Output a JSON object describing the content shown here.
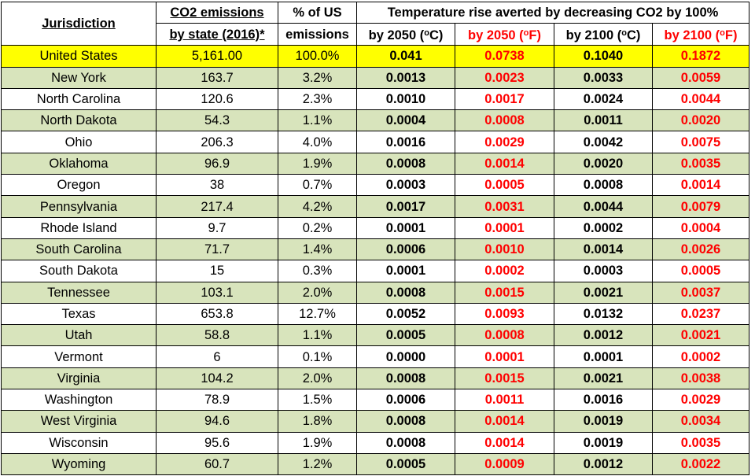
{
  "header": {
    "jurisdiction": "Jurisdiction",
    "co2_line1": "CO2 emissions",
    "co2_line2": "by state (2016)*",
    "pct_line1": "% of US",
    "pct_line2": "emissions",
    "temp_title": "Temperature rise averted by decreasing CO2 by 100%",
    "sub": [
      {
        "pre": "by 2050 (",
        "deg": "o",
        "unit": "C)"
      },
      {
        "pre": "by 2050 (",
        "deg": "o",
        "unit": "F)"
      },
      {
        "pre": "by 2100 (",
        "deg": "o",
        "unit": "C)"
      },
      {
        "pre": "by 2100 (",
        "deg": "o",
        "unit": "F)"
      }
    ]
  },
  "colors": {
    "highlight": "#ffff00",
    "band": "#d8e4bc",
    "fahrenheit": "#ff0000"
  },
  "rows": [
    {
      "name": "United States",
      "co2": "5,161.00",
      "pct": "100.0%",
      "c2050": "0.041",
      "f2050": "0.0738",
      "c2100": "0.1040",
      "f2100": "0.1872"
    },
    {
      "name": "New York",
      "co2": "163.7",
      "pct": "3.2%",
      "c2050": "0.0013",
      "f2050": "0.0023",
      "c2100": "0.0033",
      "f2100": "0.0059"
    },
    {
      "name": "North Carolina",
      "co2": "120.6",
      "pct": "2.3%",
      "c2050": "0.0010",
      "f2050": "0.0017",
      "c2100": "0.0024",
      "f2100": "0.0044"
    },
    {
      "name": "North Dakota",
      "co2": "54.3",
      "pct": "1.1%",
      "c2050": "0.0004",
      "f2050": "0.0008",
      "c2100": "0.0011",
      "f2100": "0.0020"
    },
    {
      "name": "Ohio",
      "co2": "206.3",
      "pct": "4.0%",
      "c2050": "0.0016",
      "f2050": "0.0029",
      "c2100": "0.0042",
      "f2100": "0.0075"
    },
    {
      "name": "Oklahoma",
      "co2": "96.9",
      "pct": "1.9%",
      "c2050": "0.0008",
      "f2050": "0.0014",
      "c2100": "0.0020",
      "f2100": "0.0035"
    },
    {
      "name": "Oregon",
      "co2": "38",
      "pct": "0.7%",
      "c2050": "0.0003",
      "f2050": "0.0005",
      "c2100": "0.0008",
      "f2100": "0.0014"
    },
    {
      "name": "Pennsylvania",
      "co2": "217.4",
      "pct": "4.2%",
      "c2050": "0.0017",
      "f2050": "0.0031",
      "c2100": "0.0044",
      "f2100": "0.0079"
    },
    {
      "name": "Rhode Island",
      "co2": "9.7",
      "pct": "0.2%",
      "c2050": "0.0001",
      "f2050": "0.0001",
      "c2100": "0.0002",
      "f2100": "0.0004"
    },
    {
      "name": "South Carolina",
      "co2": "71.7",
      "pct": "1.4%",
      "c2050": "0.0006",
      "f2050": "0.0010",
      "c2100": "0.0014",
      "f2100": "0.0026"
    },
    {
      "name": "South Dakota",
      "co2": "15",
      "pct": "0.3%",
      "c2050": "0.0001",
      "f2050": "0.0002",
      "c2100": "0.0003",
      "f2100": "0.0005"
    },
    {
      "name": "Tennessee",
      "co2": "103.1",
      "pct": "2.0%",
      "c2050": "0.0008",
      "f2050": "0.0015",
      "c2100": "0.0021",
      "f2100": "0.0037"
    },
    {
      "name": "Texas",
      "co2": "653.8",
      "pct": "12.7%",
      "c2050": "0.0052",
      "f2050": "0.0093",
      "c2100": "0.0132",
      "f2100": "0.0237"
    },
    {
      "name": "Utah",
      "co2": "58.8",
      "pct": "1.1%",
      "c2050": "0.0005",
      "f2050": "0.0008",
      "c2100": "0.0012",
      "f2100": "0.0021"
    },
    {
      "name": "Vermont",
      "co2": "6",
      "pct": "0.1%",
      "c2050": "0.0000",
      "f2050": "0.0001",
      "c2100": "0.0001",
      "f2100": "0.0002"
    },
    {
      "name": "Virginia",
      "co2": "104.2",
      "pct": "2.0%",
      "c2050": "0.0008",
      "f2050": "0.0015",
      "c2100": "0.0021",
      "f2100": "0.0038"
    },
    {
      "name": "Washington",
      "co2": "78.9",
      "pct": "1.5%",
      "c2050": "0.0006",
      "f2050": "0.0011",
      "c2100": "0.0016",
      "f2100": "0.0029"
    },
    {
      "name": "West Virginia",
      "co2": "94.6",
      "pct": "1.8%",
      "c2050": "0.0008",
      "f2050": "0.0014",
      "c2100": "0.0019",
      "f2100": "0.0034"
    },
    {
      "name": "Wisconsin",
      "co2": "95.6",
      "pct": "1.9%",
      "c2050": "0.0008",
      "f2050": "0.0014",
      "c2100": "0.0019",
      "f2100": "0.0035"
    },
    {
      "name": "Wyoming",
      "co2": "60.7",
      "pct": "1.2%",
      "c2050": "0.0005",
      "f2050": "0.0009",
      "c2100": "0.0012",
      "f2100": "0.0022"
    }
  ]
}
